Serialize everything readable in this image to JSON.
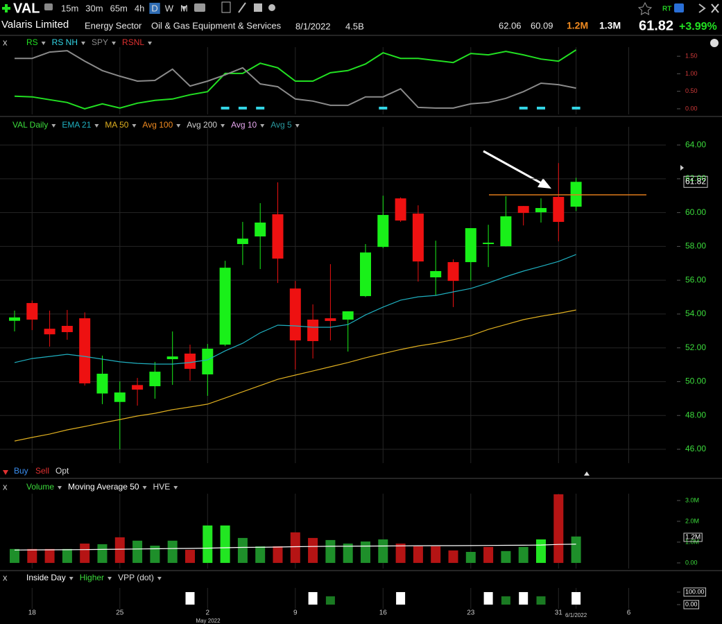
{
  "toolbar": {
    "ticker": "VAL",
    "intervals": [
      "15m",
      "30m",
      "65m",
      "4h",
      "D",
      "W",
      "M"
    ],
    "selected": "D",
    "rt": "RT"
  },
  "header": {
    "name": "Valaris Limited",
    "sector": "Energy Sector",
    "industry": "Oil & Gas Equipment & Services",
    "date": "8/1/2022",
    "market_cap": "4.5B",
    "high": "62.06",
    "low": "60.09",
    "volume": "1.2M",
    "avg_volume": "1.3M",
    "last": "61.82",
    "change": "+3.99%"
  },
  "trade_buttons": [
    "Buy",
    "Sell",
    "Opt"
  ],
  "chart_data": [
    {
      "type": "line",
      "close_label": "x",
      "ylim": [
        -0.16,
        1.76
      ],
      "yticks": [
        {
          "value": 0,
          "label": "0.00"
        },
        {
          "value": 0.5,
          "label": "0.50"
        },
        {
          "value": 1,
          "label": "1.00"
        },
        {
          "value": 1.5,
          "label": "1.50"
        }
      ],
      "grid": false,
      "series": [
        {
          "name": "RS",
          "color": "#22e022",
          "values": [
            0.36,
            0.34,
            0.26,
            0.18,
            0.0,
            0.14,
            0.02,
            0.16,
            0.24,
            0.28,
            0.4,
            0.49,
            1.01,
            1.01,
            1.3,
            1.17,
            0.79,
            0.79,
            1.03,
            1.09,
            1.28,
            1.6,
            1.44,
            1.44,
            1.38,
            1.32,
            1.58,
            1.54,
            1.64,
            1.54,
            1.42,
            1.36,
            1.68,
            null,
            null,
            null
          ]
        },
        {
          "name": "RS NH",
          "color": "#33d6e6",
          "style": "markers",
          "values": [
            null,
            null,
            null,
            null,
            null,
            null,
            null,
            null,
            null,
            null,
            null,
            null,
            0,
            0,
            0,
            null,
            null,
            null,
            null,
            null,
            null,
            0,
            null,
            null,
            null,
            null,
            null,
            null,
            null,
            0,
            0,
            null,
            0,
            null,
            null,
            null
          ]
        },
        {
          "name": "SPY",
          "color": "#8a8a8a",
          "values": [
            1.44,
            1.44,
            1.62,
            1.66,
            1.36,
            1.09,
            0.93,
            0.79,
            0.81,
            1.13,
            0.65,
            0.79,
            0.97,
            1.17,
            0.71,
            0.63,
            0.28,
            0.22,
            0.1,
            0.1,
            0.34,
            0.34,
            0.57,
            0.04,
            0.02,
            0.02,
            0.14,
            0.18,
            0.3,
            0.49,
            0.73,
            0.69,
            0.59,
            null,
            null,
            null
          ]
        }
      ],
      "extra_legend": [
        {
          "name": "RSNL",
          "color": "#e03030"
        }
      ]
    },
    {
      "type": "candlestick",
      "ylim": [
        45.18,
        65.07
      ],
      "yticks": [
        {
          "value": 46,
          "label": "46.00"
        },
        {
          "value": 48,
          "label": "48.00"
        },
        {
          "value": 50,
          "label": "50.00"
        },
        {
          "value": 52,
          "label": "52.00"
        },
        {
          "value": 54,
          "label": "54.00"
        },
        {
          "value": 56,
          "label": "56.00"
        },
        {
          "value": 58,
          "label": "58.00"
        },
        {
          "value": 60,
          "label": "60.00"
        },
        {
          "value": 62,
          "label": "62.00"
        },
        {
          "value": 64,
          "label": "64.00"
        }
      ],
      "grid": true,
      "up_color": "#19f019",
      "down_color": "#ee1111",
      "hline": 61.05,
      "hline_color": "#e07a1a",
      "series": [
        {
          "name": "VAL Daily",
          "type": "candlestick",
          "color": "#3cdc3c",
          "open": [
            53.6,
            54.65,
            53.13,
            53.3,
            53.75,
            49.3,
            48.8,
            49.8,
            49.73,
            51.33,
            51.66,
            50.43,
            52.19,
            58.14,
            58.59,
            59.9,
            55.51,
            53.67,
            53.75,
            53.67,
            55.06,
            57.97,
            60.84,
            59.94,
            56.17,
            57.07,
            57.07,
            58.14,
            58.01,
            60.39,
            60.02,
            60.93,
            60.35,
            null,
            null,
            null
          ],
          "high": [
            54.2,
            54.8,
            54.2,
            54.24,
            54.1,
            51.54,
            50.02,
            50.22,
            51.17,
            52.97,
            52.19,
            52.23,
            57.15,
            59.45,
            60.56,
            61.79,
            55.96,
            54.57,
            56.95,
            54.16,
            58.14,
            61.0,
            60.9,
            60.43,
            58.34,
            57.23,
            59.08,
            59.28,
            60.97,
            60.39,
            60.84,
            62.93,
            62.06,
            null,
            null,
            null
          ],
          "low": [
            52.97,
            53.05,
            52.07,
            52.48,
            49.77,
            48.67,
            46.0,
            48.58,
            48.99,
            49.81,
            50.06,
            49.16,
            52.1,
            56.9,
            56.66,
            55.84,
            50.72,
            51.37,
            52.44,
            51.78,
            55.0,
            57.9,
            59.45,
            55.92,
            55.1,
            54.41,
            55.96,
            56.78,
            58.0,
            59.24,
            59.41,
            58.3,
            60.09,
            null,
            null,
            null
          ],
          "close": [
            53.8,
            53.67,
            52.8,
            52.93,
            49.9,
            50.47,
            49.36,
            49.53,
            50.59,
            51.49,
            50.76,
            51.95,
            56.74,
            58.46,
            59.41,
            57.28,
            52.44,
            52.4,
            53.59,
            54.16,
            57.64,
            59.86,
            59.53,
            57.11,
            56.54,
            55.96,
            59.08,
            58.22,
            59.78,
            59.98,
            60.27,
            59.45,
            61.82,
            null,
            null,
            null
          ]
        },
        {
          "name": "EMA 21",
          "color": "#1fb0c0",
          "values": [
            51.13,
            51.37,
            51.49,
            51.62,
            51.49,
            51.33,
            51.17,
            51.08,
            51.04,
            51.04,
            51.13,
            51.29,
            51.82,
            52.27,
            52.89,
            53.34,
            53.3,
            53.22,
            53.22,
            53.38,
            53.95,
            54.41,
            54.82,
            55.02,
            55.1,
            55.31,
            55.51,
            55.84,
            56.21,
            56.54,
            56.82,
            57.11,
            57.52,
            null,
            null,
            null
          ]
        },
        {
          "name": "MA 50",
          "color": "#e0b020",
          "values": [
            46.49,
            46.7,
            46.9,
            47.15,
            47.35,
            47.56,
            47.76,
            47.97,
            48.13,
            48.34,
            48.5,
            48.67,
            49.03,
            49.4,
            49.77,
            50.14,
            50.39,
            50.63,
            50.88,
            51.13,
            51.41,
            51.66,
            51.9,
            52.11,
            52.27,
            52.48,
            52.72,
            53.09,
            53.38,
            53.67,
            53.87,
            54.04,
            54.24,
            null,
            null,
            null
          ]
        }
      ],
      "extra_legend": [
        {
          "name": "Avg 100",
          "color": "#f08a20"
        },
        {
          "name": "Avg 200",
          "color": "#cfcfcf"
        },
        {
          "name": "Avg 10",
          "color": "#e8a8f0"
        },
        {
          "name": "Avg 5",
          "color": "#2a9aa0"
        }
      ]
    },
    {
      "type": "bar",
      "close_label": "x",
      "ylim": [
        -270000,
        3330000
      ],
      "yticks": [
        {
          "value": 0,
          "label": "0.00"
        },
        {
          "value": 1000000,
          "label": "1.0M"
        },
        {
          "value": 2000000,
          "label": "2.0M"
        },
        {
          "value": 3000000,
          "label": "3.0M"
        }
      ],
      "grid": false,
      "series": [
        {
          "name": "Volume",
          "type": "bar",
          "label_color": "#3cdc3c",
          "colors": [
            "#1e8f2a",
            "#b51414",
            "#b51414",
            "#1e8f2a",
            "#b51414",
            "#1e8f2a",
            "#b51414",
            "#1e8f2a",
            "#1e8f2a",
            "#1e8f2a",
            "#b51414",
            "#22e622",
            "#22e622",
            "#1e8f2a",
            "#1e8f2a",
            "#b51414",
            "#b51414",
            "#b51414",
            "#1e8f2a",
            "#1e8f2a",
            "#1e8f2a",
            "#1e8f2a",
            "#b51414",
            "#b51414",
            "#b51414",
            "#b51414",
            "#1e8f2a",
            "#b51414",
            "#1e8f2a",
            "#1e8f2a",
            "#22e622",
            "#b51414",
            "#1e8f2a",
            null,
            null,
            null
          ],
          "values": [
            670000,
            670000,
            670000,
            670000,
            930000,
            900000,
            1230000,
            1070000,
            830000,
            1070000,
            630000,
            1800000,
            1800000,
            1200000,
            800000,
            800000,
            1470000,
            1200000,
            1100000,
            930000,
            1030000,
            1130000,
            930000,
            800000,
            800000,
            600000,
            530000,
            770000,
            570000,
            770000,
            1130000,
            3300000,
            1270000,
            null,
            null,
            null
          ]
        },
        {
          "name": "Moving Average 50",
          "color": "#ffffff",
          "values": [
            620000,
            625000,
            630000,
            635000,
            640000,
            650000,
            660000,
            670000,
            680000,
            690000,
            695000,
            710000,
            730000,
            745000,
            755000,
            765000,
            780000,
            790000,
            800000,
            805000,
            810000,
            815000,
            820000,
            825000,
            830000,
            830000,
            835000,
            840000,
            845000,
            850000,
            860000,
            890000,
            900000,
            null,
            null,
            null
          ]
        }
      ],
      "extra_legend": [
        {
          "name": "HVE",
          "color": "#dddddd"
        }
      ]
    },
    {
      "type": "bar",
      "close_label": "x",
      "ylim": [
        -33,
        133
      ],
      "yticks": [
        {
          "value": 0,
          "label": "0.00"
        },
        {
          "value": 100,
          "label": "100.00"
        }
      ],
      "grid": false,
      "categories": [
        null,
        "18",
        null,
        null,
        null,
        null,
        "25",
        null,
        null,
        null,
        null,
        "2",
        null,
        null,
        null,
        null,
        "9",
        null,
        null,
        null,
        null,
        "16",
        null,
        null,
        null,
        null,
        "23",
        null,
        null,
        null,
        null,
        "31",
        "6/1/2022",
        null,
        null,
        "6"
      ],
      "month_label": "May 2022",
      "series": [
        {
          "name": "Inside Day",
          "type": "bar",
          "color": "#ffffff",
          "values": [
            null,
            null,
            null,
            null,
            null,
            null,
            null,
            null,
            null,
            null,
            100,
            null,
            null,
            null,
            null,
            null,
            null,
            100,
            null,
            null,
            null,
            null,
            100,
            null,
            null,
            null,
            null,
            100,
            null,
            100,
            null,
            null,
            100,
            null,
            null,
            null
          ]
        },
        {
          "name": "Higher",
          "type": "bar",
          "color": "#1a7a22",
          "label_color": "#3cdc3c",
          "values": [
            null,
            null,
            null,
            null,
            null,
            null,
            null,
            null,
            null,
            null,
            null,
            null,
            null,
            null,
            null,
            null,
            null,
            null,
            66,
            null,
            null,
            null,
            null,
            null,
            null,
            null,
            null,
            null,
            66,
            null,
            66,
            null,
            null,
            null,
            null,
            null
          ]
        }
      ],
      "extra_legend": [
        {
          "name": "VPP (dot)",
          "color": "#dddddd"
        }
      ]
    }
  ]
}
